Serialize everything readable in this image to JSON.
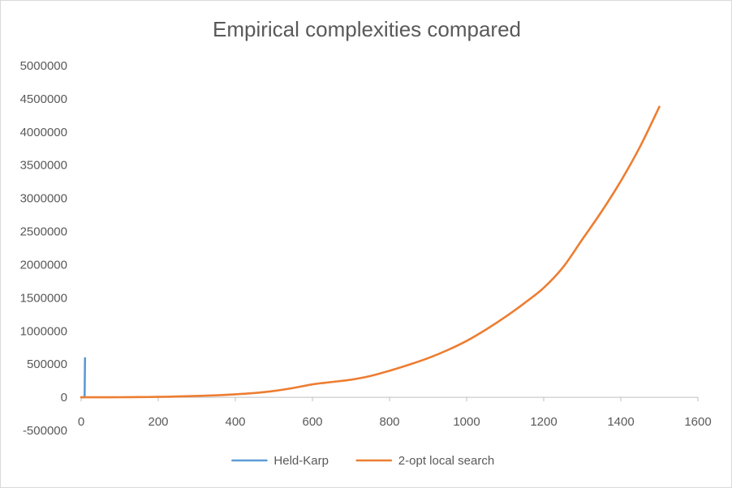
{
  "chart_data": {
    "type": "line",
    "title": "Empirical complexities compared",
    "xlabel": "",
    "ylabel": "",
    "xlim": [
      0,
      1600
    ],
    "ylim": [
      -500000,
      5000000
    ],
    "x_ticks": [
      0,
      200,
      400,
      600,
      800,
      1000,
      1200,
      1400,
      1600
    ],
    "y_ticks": [
      -500000,
      0,
      500000,
      1000000,
      1500000,
      2000000,
      2500000,
      3000000,
      3500000,
      4000000,
      4500000,
      5000000
    ],
    "x_tick_labels": [
      "0",
      "200",
      "400",
      "600",
      "800",
      "1000",
      "1200",
      "1400",
      "1600"
    ],
    "y_tick_labels": [
      "-500000",
      "0",
      "500000",
      "1000000",
      "1500000",
      "2000000",
      "2500000",
      "3000000",
      "3500000",
      "4000000",
      "4500000",
      "5000000"
    ],
    "grid": false,
    "legend_position": "bottom",
    "series": [
      {
        "name": "Held-Karp",
        "color": "#5B9BD5",
        "x": [
          1,
          2,
          3,
          4,
          5,
          6,
          7,
          8,
          9,
          10
        ],
        "y": [
          0,
          0,
          0,
          0,
          0,
          0,
          200,
          1200,
          10000,
          590000
        ]
      },
      {
        "name": "2-opt local search",
        "color": "#ED7D31",
        "x": [
          0,
          50,
          100,
          150,
          200,
          250,
          300,
          350,
          400,
          450,
          500,
          550,
          600,
          650,
          700,
          750,
          800,
          850,
          900,
          950,
          1000,
          1050,
          1100,
          1150,
          1200,
          1250,
          1300,
          1350,
          1400,
          1450,
          1500
        ],
        "y": [
          0,
          0,
          1000,
          3000,
          6000,
          12000,
          20000,
          30000,
          45000,
          65000,
          95000,
          140000,
          195000,
          230000,
          265000,
          320000,
          400000,
          490000,
          590000,
          710000,
          850000,
          1020000,
          1210000,
          1420000,
          1650000,
          1960000,
          2380000,
          2800000,
          3260000,
          3780000,
          4380000
        ]
      }
    ]
  }
}
